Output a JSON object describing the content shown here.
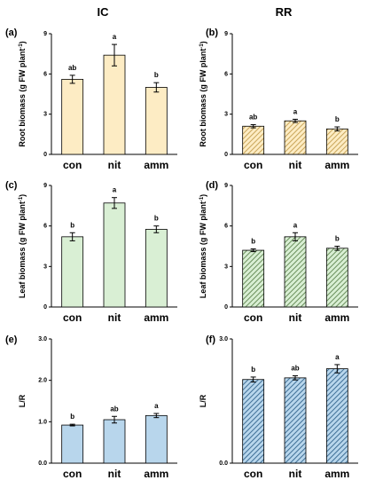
{
  "column_titles": [
    "IC",
    "RR"
  ],
  "colors": {
    "root": "#fdecc4",
    "leaf": "#d9efd4",
    "lr": "#b8d6ec",
    "hatch_root": "#c9a65a",
    "hatch_leaf": "#6a8f5c",
    "hatch_lr": "#3f6f96",
    "axis": "#000000",
    "error": "#000000"
  },
  "chart_data": [
    {
      "panel_label": "(a)",
      "type": "bar",
      "fill": "plain",
      "color_key": "root",
      "categories": [
        "con",
        "nit",
        "amm"
      ],
      "values": [
        5.6,
        7.4,
        5.0
      ],
      "errors": [
        0.3,
        0.8,
        0.35
      ],
      "letters": [
        "ab",
        "a",
        "b"
      ],
      "ylabel": "Root biomass (g FW plant",
      "ylabel_sup": "-1",
      "ylabel_end": ")",
      "ylim": [
        0,
        9
      ],
      "yticks": [
        "0",
        "3",
        "6",
        "9"
      ]
    },
    {
      "panel_label": "(b)",
      "type": "bar",
      "fill": "hatched",
      "color_key": "root",
      "categories": [
        "con",
        "nit",
        "amm"
      ],
      "values": [
        2.1,
        2.5,
        1.9
      ],
      "errors": [
        0.12,
        0.12,
        0.15
      ],
      "letters": [
        "ab",
        "a",
        "b"
      ],
      "ylabel": "Root biomass (g FW plant",
      "ylabel_sup": "-1",
      "ylabel_end": ")",
      "ylim": [
        0,
        9
      ],
      "yticks": [
        "0",
        "3",
        "6",
        "9"
      ]
    },
    {
      "panel_label": "(c)",
      "type": "bar",
      "fill": "plain",
      "color_key": "leaf",
      "categories": [
        "con",
        "nit",
        "amm"
      ],
      "values": [
        5.2,
        7.7,
        5.75
      ],
      "errors": [
        0.3,
        0.4,
        0.25
      ],
      "letters": [
        "b",
        "a",
        "b"
      ],
      "ylabel": "Leaf biomass (g FW plant",
      "ylabel_sup": "-1",
      "ylabel_end": ")",
      "ylim": [
        0,
        9
      ],
      "yticks": [
        "0",
        "3",
        "6",
        "9"
      ]
    },
    {
      "panel_label": "(d)",
      "type": "bar",
      "fill": "hatched",
      "color_key": "leaf",
      "categories": [
        "con",
        "nit",
        "amm"
      ],
      "values": [
        4.2,
        5.2,
        4.35
      ],
      "errors": [
        0.1,
        0.3,
        0.15
      ],
      "letters": [
        "b",
        "a",
        "b"
      ],
      "ylabel": "Leaf biomass (g FW plant",
      "ylabel_sup": "-1",
      "ylabel_end": ")",
      "ylim": [
        0,
        9
      ],
      "yticks": [
        "0",
        "3",
        "6",
        "9"
      ]
    },
    {
      "panel_label": "(e)",
      "type": "bar",
      "fill": "plain",
      "color_key": "lr",
      "categories": [
        "con",
        "nit",
        "amm"
      ],
      "values": [
        0.92,
        1.05,
        1.15
      ],
      "errors": [
        0.02,
        0.08,
        0.05
      ],
      "letters": [
        "b",
        "ab",
        "a"
      ],
      "ylabel": "L/R",
      "ylabel_sup": "",
      "ylabel_end": "",
      "ylim": [
        0,
        3
      ],
      "yticks": [
        "0.0",
        "1.0",
        "2.0",
        "3.0"
      ]
    },
    {
      "panel_label": "(f)",
      "type": "bar",
      "fill": "hatched",
      "color_key": "lr",
      "categories": [
        "con",
        "nit",
        "amm"
      ],
      "values": [
        2.02,
        2.06,
        2.28
      ],
      "errors": [
        0.06,
        0.05,
        0.1
      ],
      "letters": [
        "b",
        "ab",
        "a"
      ],
      "ylabel": "L/R",
      "ylabel_sup": "",
      "ylabel_end": "",
      "ylim": [
        0,
        3
      ],
      "yticks": [
        "0.0",
        "3.0"
      ]
    }
  ]
}
